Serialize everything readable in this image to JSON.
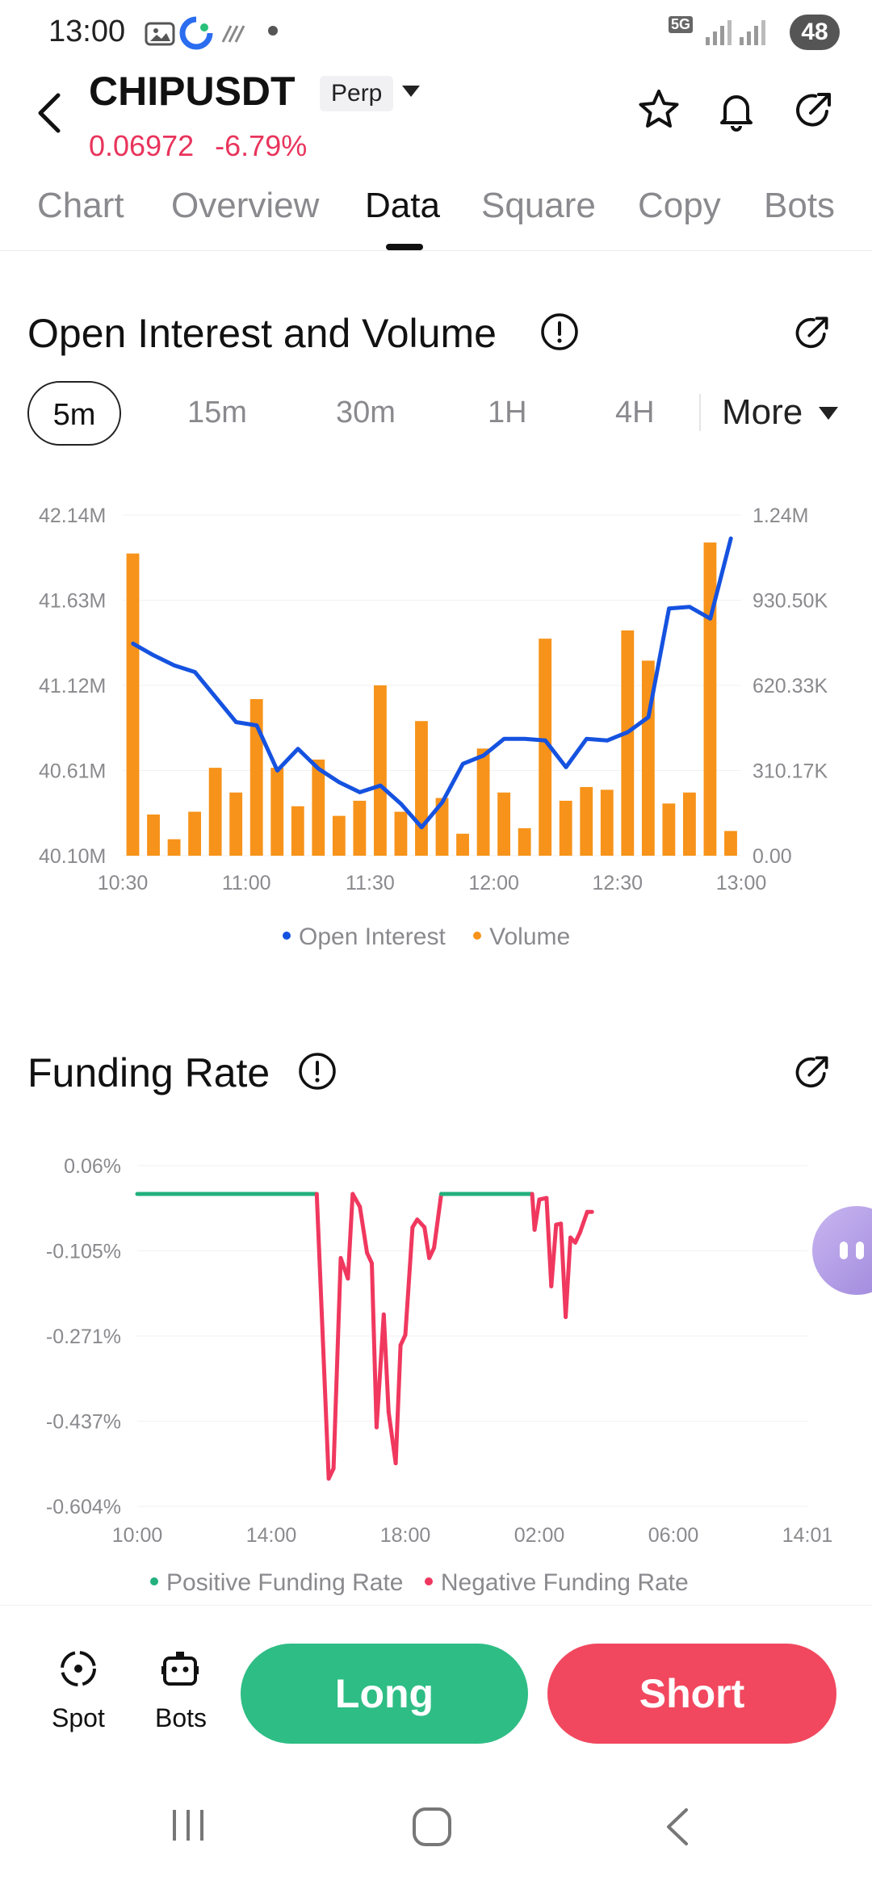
{
  "status_bar": {
    "time": "13:00",
    "network": "5G",
    "battery": "48"
  },
  "header": {
    "symbol": "CHIPUSDT",
    "badge": "Perp",
    "last_price": "0.06972",
    "change_pct": "-6.79%"
  },
  "tabs": [
    {
      "label": "Chart"
    },
    {
      "label": "Overview"
    },
    {
      "label": "Data"
    },
    {
      "label": "Square"
    },
    {
      "label": "Copy"
    },
    {
      "label": "Bots"
    }
  ],
  "active_tab": "Data",
  "oi_section": {
    "title": "Open Interest and Volume",
    "intervals": [
      "5m",
      "15m",
      "30m",
      "1H",
      "4H"
    ],
    "selected_interval": "5m",
    "more_label": "More"
  },
  "funding_section": {
    "title": "Funding Rate"
  },
  "bottom_bar": {
    "spot_label": "Spot",
    "bots_label": "Bots",
    "long_label": "Long",
    "short_label": "Short"
  },
  "colors": {
    "accent_green": "#2ebd85",
    "accent_red": "#f1485f",
    "price_red": "#e8345c",
    "oi_blue": "#1552e0",
    "volume_orange": "#f7931a",
    "funding_green": "#22b07d",
    "funding_red": "#f0385f"
  },
  "chart_data": [
    {
      "type": "bar+line",
      "title": "Open Interest and Volume",
      "x_ticks": [
        "10:30",
        "11:00",
        "11:30",
        "12:00",
        "12:30",
        "13:00"
      ],
      "left_axis": {
        "label": "Open Interest",
        "ticks": [
          "42.14M",
          "41.63M",
          "41.12M",
          "40.61M",
          "40.10M"
        ],
        "range": [
          40.1,
          42.14
        ]
      },
      "right_axis": {
        "label": "Volume",
        "ticks": [
          "1.24M",
          "930.50K",
          "620.33K",
          "310.17K",
          "0.00"
        ],
        "range": [
          0,
          1240000
        ]
      },
      "legend": [
        {
          "name": "Open Interest",
          "color": "#1552e0"
        },
        {
          "name": "Volume",
          "color": "#f7931a"
        }
      ],
      "series": [
        {
          "name": "Volume",
          "kind": "bar",
          "values": [
            1100000,
            150000,
            60000,
            160000,
            320000,
            230000,
            570000,
            320000,
            180000,
            350000,
            145000,
            200000,
            620000,
            160000,
            490000,
            210000,
            80000,
            390000,
            230000,
            100000,
            790000,
            200000,
            250000,
            240000,
            820000,
            710000,
            190000,
            230000,
            1140000,
            90000
          ]
        },
        {
          "name": "Open Interest",
          "kind": "line",
          "values": [
            41.37,
            41.3,
            41.24,
            41.2,
            41.05,
            40.9,
            40.88,
            40.61,
            40.74,
            40.62,
            40.54,
            40.48,
            40.52,
            40.41,
            40.27,
            40.42,
            40.65,
            40.7,
            40.8,
            40.8,
            40.79,
            40.63,
            40.8,
            40.79,
            40.84,
            40.93,
            41.58,
            41.59,
            41.52,
            42.0
          ]
        }
      ]
    },
    {
      "type": "line",
      "title": "Funding Rate",
      "x_ticks": [
        "10:00",
        "14:00",
        "18:00",
        "02:00",
        "06:00",
        "14:01"
      ],
      "y_ticks": [
        "0.06%",
        "-0.105%",
        "-0.271%",
        "-0.437%",
        "-0.604%"
      ],
      "y_range": [
        -0.604,
        0.06
      ],
      "legend": [
        {
          "name": "Positive Funding Rate",
          "color": "#22b07d"
        },
        {
          "name": "Negative Funding Rate",
          "color": "#f0385f"
        }
      ],
      "series": [
        {
          "name": "Funding Rate",
          "times_h": [
            0,
            7.5,
            8.0,
            8.2,
            8.5,
            8.8,
            9.0,
            9.3,
            9.6,
            9.8,
            10.0,
            10.3,
            10.5,
            10.8,
            11.0,
            11.2,
            11.5,
            11.7,
            12.0,
            12.2,
            12.4,
            12.7,
            13.0,
            13.2,
            13.5,
            14.0,
            16.5,
            16.6,
            16.8,
            17.1,
            17.3,
            17.5,
            17.7,
            17.9,
            18.1,
            18.3,
            18.5,
            18.8,
            19.0
          ],
          "values": [
            0.005,
            0.005,
            -0.55,
            -0.53,
            -0.12,
            -0.16,
            0.005,
            -0.02,
            -0.11,
            -0.13,
            -0.45,
            -0.23,
            -0.42,
            -0.52,
            -0.29,
            -0.27,
            -0.06,
            -0.045,
            -0.06,
            -0.12,
            -0.1,
            0.005,
            0.005,
            0.005,
            0.005,
            0.005,
            0.005,
            -0.065,
            -0.006,
            -0.003,
            -0.175,
            -0.055,
            -0.053,
            -0.235,
            -0.08,
            -0.09,
            -0.07,
            -0.03,
            -0.03
          ]
        }
      ]
    }
  ]
}
